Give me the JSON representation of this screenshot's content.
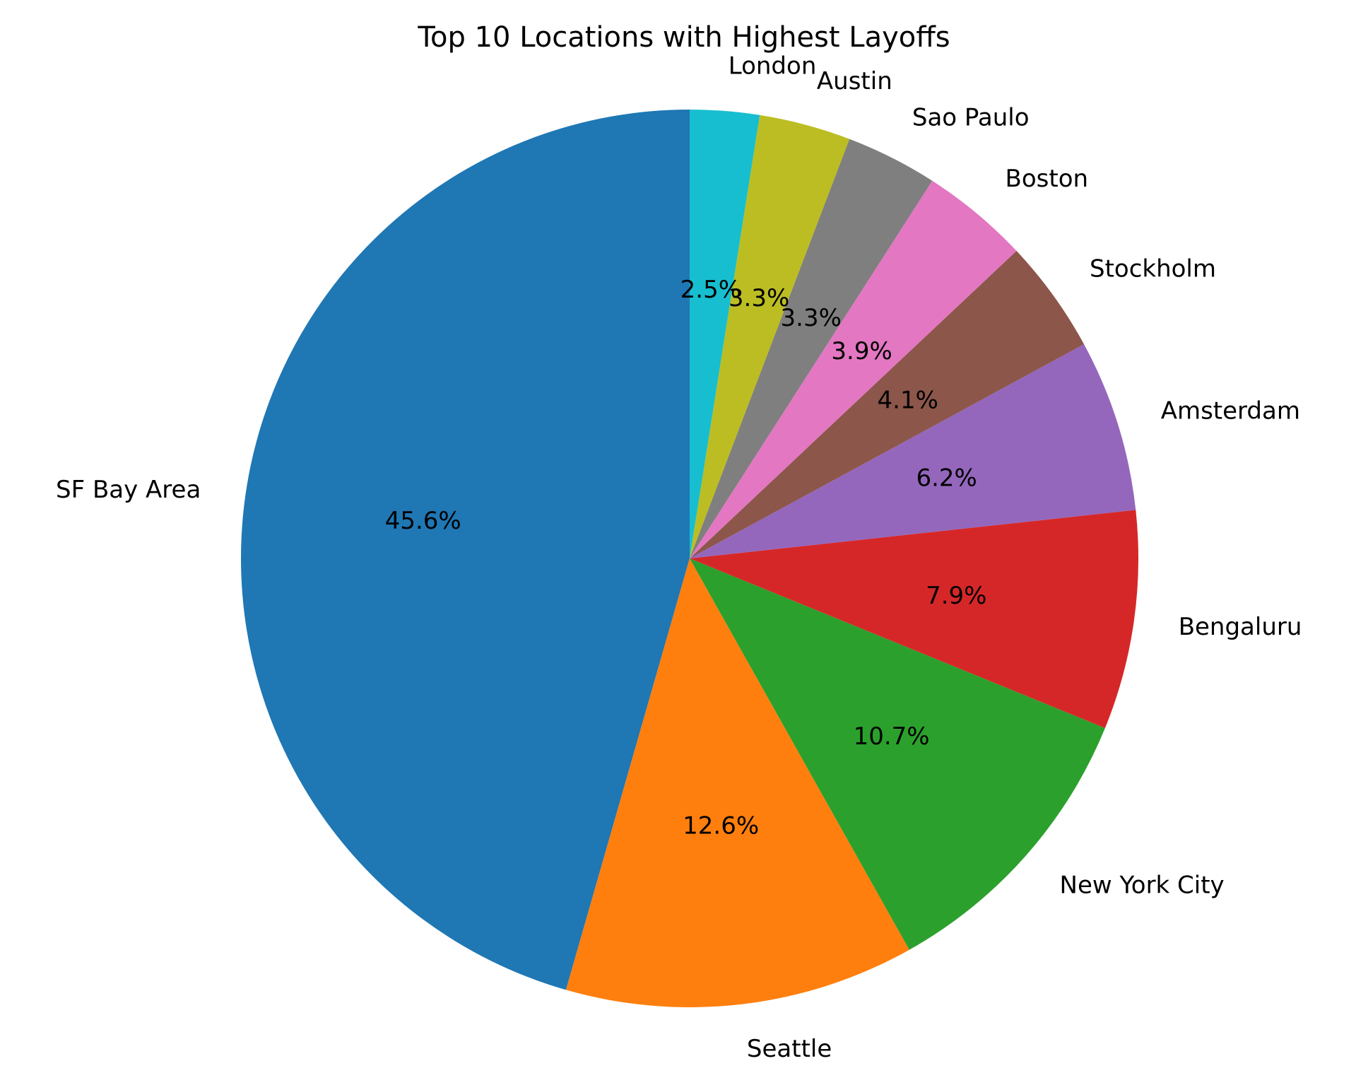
{
  "chart_data": {
    "type": "pie",
    "title": "Top 10 Locations with Highest Layoffs",
    "start_angle_deg": 90,
    "direction": "counterclockwise",
    "slices": [
      {
        "label": "SF Bay Area",
        "percent": 45.6,
        "percent_label": "45.6%",
        "color": "#1f77b4"
      },
      {
        "label": "Seattle",
        "percent": 12.6,
        "percent_label": "12.6%",
        "color": "#ff7f0e"
      },
      {
        "label": "New York City",
        "percent": 10.7,
        "percent_label": "10.7%",
        "color": "#2ca02c"
      },
      {
        "label": "Bengaluru",
        "percent": 7.9,
        "percent_label": "7.9%",
        "color": "#d62728"
      },
      {
        "label": "Amsterdam",
        "percent": 6.2,
        "percent_label": "6.2%",
        "color": "#9467bd"
      },
      {
        "label": "Stockholm",
        "percent": 4.1,
        "percent_label": "4.1%",
        "color": "#8c564b"
      },
      {
        "label": "Boston",
        "percent": 3.9,
        "percent_label": "3.9%",
        "color": "#e377c2"
      },
      {
        "label": "Sao Paulo",
        "percent": 3.3,
        "percent_label": "3.3%",
        "color": "#7f7f7f"
      },
      {
        "label": "Austin",
        "percent": 3.3,
        "percent_label": "3.3%",
        "color": "#bcbd22"
      },
      {
        "label": "London",
        "percent": 2.5,
        "percent_label": "2.5%",
        "color": "#17becf"
      }
    ]
  }
}
